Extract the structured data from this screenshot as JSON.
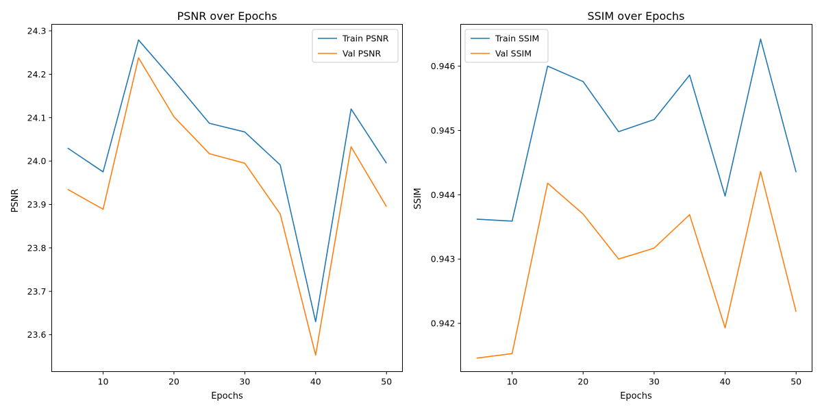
{
  "chart_data": [
    {
      "type": "line",
      "title": "PSNR over Epochs",
      "xlabel": "Epochs",
      "ylabel": "PSNR",
      "x": [
        5,
        10,
        15,
        20,
        25,
        30,
        35,
        40,
        45,
        50
      ],
      "xlim": [
        2.75,
        52.25
      ],
      "ylim": [
        23.515,
        24.315
      ],
      "xticks": [
        10,
        20,
        30,
        40,
        50
      ],
      "xtick_labels": [
        "10",
        "20",
        "30",
        "40",
        "50"
      ],
      "yticks": [
        23.6,
        23.7,
        23.8,
        23.9,
        24.0,
        24.1,
        24.2,
        24.3
      ],
      "ytick_labels": [
        "23.6",
        "23.7",
        "23.8",
        "23.9",
        "24.0",
        "24.1",
        "24.2",
        "24.3"
      ],
      "legend_position": "top-right",
      "grid": false,
      "series": [
        {
          "name": "Train PSNR",
          "color": "#1f77b4",
          "values": [
            24.03,
            23.975,
            24.279,
            24.185,
            24.087,
            24.067,
            23.991,
            23.63,
            24.12,
            23.995
          ]
        },
        {
          "name": "Val PSNR",
          "color": "#ff7f0e",
          "values": [
            23.935,
            23.889,
            24.238,
            24.102,
            24.017,
            23.995,
            23.878,
            23.553,
            24.033,
            23.895
          ]
        }
      ]
    },
    {
      "type": "line",
      "title": "SSIM over Epochs",
      "xlabel": "Epochs",
      "ylabel": "SSIM",
      "x": [
        5,
        10,
        15,
        20,
        25,
        30,
        35,
        40,
        45,
        50
      ],
      "xlim": [
        2.75,
        52.25
      ],
      "ylim": [
        0.94125,
        0.94665
      ],
      "xticks": [
        10,
        20,
        30,
        40,
        50
      ],
      "xtick_labels": [
        "10",
        "20",
        "30",
        "40",
        "50"
      ],
      "yticks": [
        0.942,
        0.943,
        0.944,
        0.945,
        0.946
      ],
      "ytick_labels": [
        "0.942",
        "0.943",
        "0.944",
        "0.945",
        "0.946"
      ],
      "legend_position": "top-left",
      "grid": false,
      "series": [
        {
          "name": "Train SSIM",
          "color": "#1f77b4",
          "values": [
            0.94362,
            0.94359,
            0.946,
            0.94576,
            0.94498,
            0.94517,
            0.94586,
            0.94398,
            0.94642,
            0.94435
          ]
        },
        {
          "name": "Val SSIM",
          "color": "#ff7f0e",
          "values": [
            0.94146,
            0.94153,
            0.94418,
            0.9437,
            0.943,
            0.94317,
            0.94369,
            0.94193,
            0.94436,
            0.94218
          ]
        }
      ]
    }
  ]
}
